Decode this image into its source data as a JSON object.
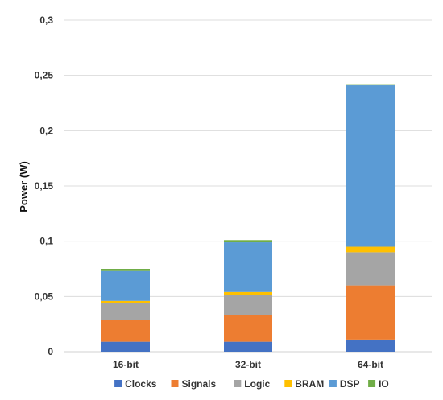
{
  "chart_data": {
    "type": "bar",
    "stacked": true,
    "categories": [
      "16-bit",
      "32-bit",
      "64-bit"
    ],
    "series": [
      {
        "name": "Clocks",
        "color": "#4472c4",
        "values": [
          0.009,
          0.009,
          0.011
        ]
      },
      {
        "name": "Signals",
        "color": "#ed7d31",
        "values": [
          0.02,
          0.024,
          0.049
        ]
      },
      {
        "name": "Logic",
        "color": "#a5a5a5",
        "values": [
          0.015,
          0.018,
          0.03
        ]
      },
      {
        "name": "BRAM",
        "color": "#ffc000",
        "values": [
          0.002,
          0.003,
          0.005
        ]
      },
      {
        "name": "DSP",
        "color": "#5b9bd5",
        "values": [
          0.027,
          0.045,
          0.146
        ]
      },
      {
        "name": "IO",
        "color": "#70ad47",
        "values": [
          0.002,
          0.002,
          0.001
        ]
      }
    ],
    "ylabel": "Power (W)",
    "ylim": [
      0,
      0.3
    ],
    "yticks": [
      0,
      0.05,
      0.1,
      0.15,
      0.2,
      0.25,
      0.3
    ],
    "ytick_labels": [
      "0",
      "0,05",
      "0,1",
      "0,15",
      "0,2",
      "0,25",
      "0,3"
    ],
    "grid": true,
    "legend_position": "bottom"
  }
}
